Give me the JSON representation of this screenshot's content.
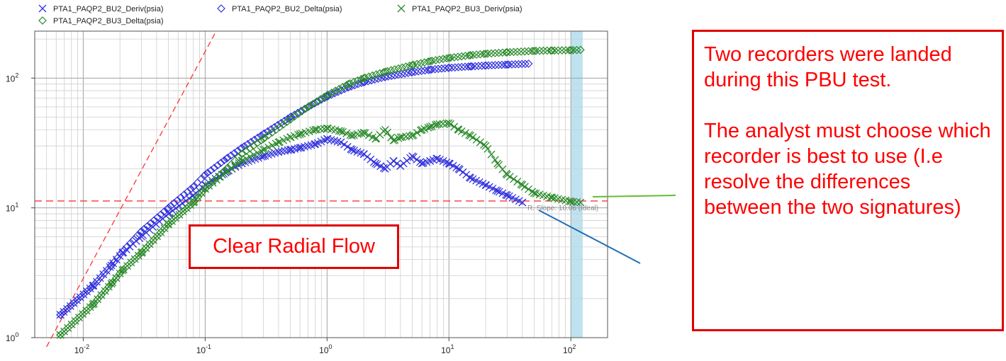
{
  "chart_data": {
    "type": "scatter",
    "scale": "log-log",
    "grid": true,
    "legend_position": "top",
    "xlim": [
      0.004,
      200
    ],
    "ylim": [
      1,
      230
    ],
    "x_ticks": [
      {
        "value": 0.01,
        "base": "10",
        "exp": "-2"
      },
      {
        "value": 0.1,
        "base": "10",
        "exp": "-1"
      },
      {
        "value": 1,
        "base": "10",
        "exp": "0"
      },
      {
        "value": 10,
        "base": "10",
        "exp": "1"
      },
      {
        "value": 100,
        "base": "10",
        "exp": "2"
      }
    ],
    "y_ticks": [
      {
        "value": 1,
        "base": "10",
        "exp": "0"
      },
      {
        "value": 10,
        "base": "10",
        "exp": "1"
      },
      {
        "value": 100,
        "base": "10",
        "exp": "2"
      }
    ],
    "series": [
      {
        "name": "PTA1_PAQP2_BU2_Deriv(psia)",
        "marker": "x",
        "color": "#3333dd",
        "x": [
          0.0065,
          0.012,
          0.017,
          0.021,
          0.03,
          0.05,
          0.08,
          0.1,
          0.15,
          0.2,
          0.3,
          0.4,
          0.5,
          0.6,
          0.8,
          1.0,
          1.3,
          1.6,
          2.0,
          2.5,
          3.0,
          3.5,
          4.0,
          5.0,
          6.0,
          7.0,
          8.0,
          10.0,
          12.0,
          15.0,
          20.0,
          25.0,
          30.0,
          40.0
        ],
        "y": [
          1.5,
          2.5,
          3.6,
          4.5,
          6.0,
          9.0,
          12.5,
          15.0,
          19.0,
          22.0,
          25.0,
          27.0,
          28.0,
          29.0,
          31.0,
          34.0,
          32.0,
          28.0,
          26.0,
          22.0,
          20.0,
          23.0,
          21.0,
          25.0,
          22.0,
          23.0,
          24.0,
          22.0,
          20.0,
          17.0,
          15.0,
          13.5,
          12.5,
          11.0
        ]
      },
      {
        "name": "PTA1_PAQP2_BU2_Delta(psia)",
        "marker": "diamond",
        "color": "#3333dd",
        "x": [
          0.0065,
          0.012,
          0.017,
          0.021,
          0.03,
          0.05,
          0.08,
          0.1,
          0.15,
          0.2,
          0.3,
          0.5,
          0.7,
          1.0,
          1.5,
          2.0,
          3.0,
          5.0,
          7.0,
          10.0,
          15.0,
          20.0,
          30.0,
          45.0
        ],
        "y": [
          1.5,
          2.5,
          3.6,
          4.6,
          6.6,
          10.0,
          14.5,
          18.0,
          24.0,
          29.0,
          37.0,
          50.0,
          60.0,
          72.0,
          85.0,
          93.0,
          102.0,
          111.0,
          116.0,
          120.0,
          123.0,
          125.0,
          127.0,
          129.0
        ]
      },
      {
        "name": "PTA1_PAQP2_BU3_Deriv(psia)",
        "marker": "x",
        "color": "#2a8a2a",
        "x": [
          0.0065,
          0.012,
          0.017,
          0.021,
          0.03,
          0.05,
          0.08,
          0.1,
          0.15,
          0.2,
          0.3,
          0.4,
          0.5,
          0.6,
          0.8,
          1.0,
          1.3,
          1.6,
          2.0,
          2.5,
          3.0,
          3.5,
          4.0,
          5.0,
          6.0,
          7.0,
          8.0,
          10.0,
          12.0,
          15.0,
          20.0,
          25.0,
          30.0,
          40.0,
          50.0,
          70.0,
          100.0,
          120.0
        ],
        "y": [
          1.05,
          1.8,
          2.6,
          3.3,
          4.5,
          7.5,
          11.0,
          14.0,
          19.0,
          23.0,
          28.0,
          32.0,
          35.0,
          37.0,
          40.0,
          41.0,
          39.0,
          36.0,
          38.0,
          34.0,
          40.0,
          33.0,
          35.0,
          36.0,
          40.0,
          42.0,
          44.0,
          45.0,
          40.0,
          36.0,
          30.0,
          22.0,
          18.0,
          15.0,
          13.0,
          12.0,
          11.2,
          11.0
        ]
      },
      {
        "name": "PTA1_PAQP2_BU3_Delta(psia)",
        "marker": "diamond",
        "color": "#2a8a2a",
        "x": [
          0.0065,
          0.012,
          0.017,
          0.021,
          0.03,
          0.05,
          0.08,
          0.1,
          0.15,
          0.2,
          0.3,
          0.5,
          0.7,
          1.0,
          1.5,
          2.0,
          3.0,
          5.0,
          7.0,
          10.0,
          15.0,
          20.0,
          30.0,
          50.0,
          70.0,
          100.0,
          120.0
        ],
        "y": [
          1.05,
          1.8,
          2.6,
          3.3,
          4.5,
          7.5,
          11.0,
          14.0,
          20.0,
          26.0,
          34.0,
          48.0,
          60.0,
          74.0,
          90.0,
          100.0,
          112.0,
          126.0,
          135.0,
          143.0,
          150.0,
          154.0,
          158.0,
          162.0,
          163.0,
          164.0,
          165.0
        ]
      }
    ],
    "reference_lines": [
      {
        "kind": "unit-slope",
        "color": "#ff3333",
        "x": [
          0.005,
          0.12
        ],
        "y": [
          0.85,
          220
        ]
      },
      {
        "kind": "radial-flow",
        "color": "#ff3333",
        "y": 11.3
      },
      {
        "kind": "green-pointer",
        "color": "#66bb33"
      },
      {
        "kind": "blue-pointer",
        "color": "#1f6fb5"
      }
    ],
    "highlight_band": {
      "x": [
        100,
        125
      ],
      "color": "#a8d8ea"
    },
    "annotation_text": "R. Slope: 10.06 (Ideal)"
  },
  "notes": {
    "right_para1": "Two recorders were landed during this PBU test.",
    "right_para2": "The analyst must choose which recorder is best to use (I.e resolve the differences between the two signatures)",
    "left_box": "Clear Radial Flow"
  }
}
